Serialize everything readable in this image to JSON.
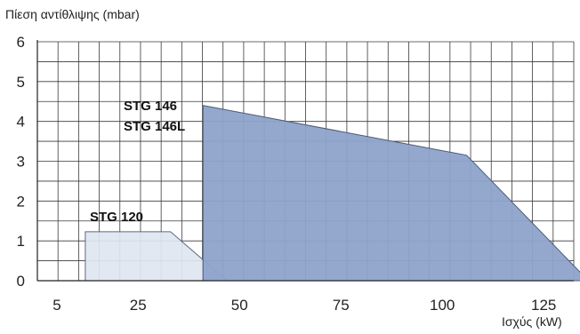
{
  "chart_data": {
    "type": "area",
    "title": "",
    "ylabel": "Πίεση αντίθλιψης (mbar)",
    "xlabel": "Ισχύς (kW)",
    "xlim": [
      5,
      136
    ],
    "ylim": [
      0,
      6
    ],
    "x_ticks": [
      5,
      25,
      50,
      75,
      100,
      125
    ],
    "y_ticks": [
      0,
      1,
      2,
      3,
      4,
      5,
      6
    ],
    "grid": true,
    "series": [
      {
        "name": "STG 120",
        "label_lines": [
          "STG 120"
        ],
        "fill": "#dfe6f1",
        "stroke": "#5a6a82",
        "points": [
          [
            12,
            0
          ],
          [
            12,
            1.23
          ],
          [
            33,
            1.23
          ],
          [
            47,
            0
          ]
        ]
      },
      {
        "name": "STG 146 / STG 146L",
        "label_lines": [
          "STG 146",
          "STG 146L"
        ],
        "fill": "#8ea3cb",
        "stroke": "#4a5a78",
        "points": [
          [
            41,
            0
          ],
          [
            41,
            4.4
          ],
          [
            106,
            3.15
          ],
          [
            136,
            0
          ]
        ]
      }
    ]
  }
}
